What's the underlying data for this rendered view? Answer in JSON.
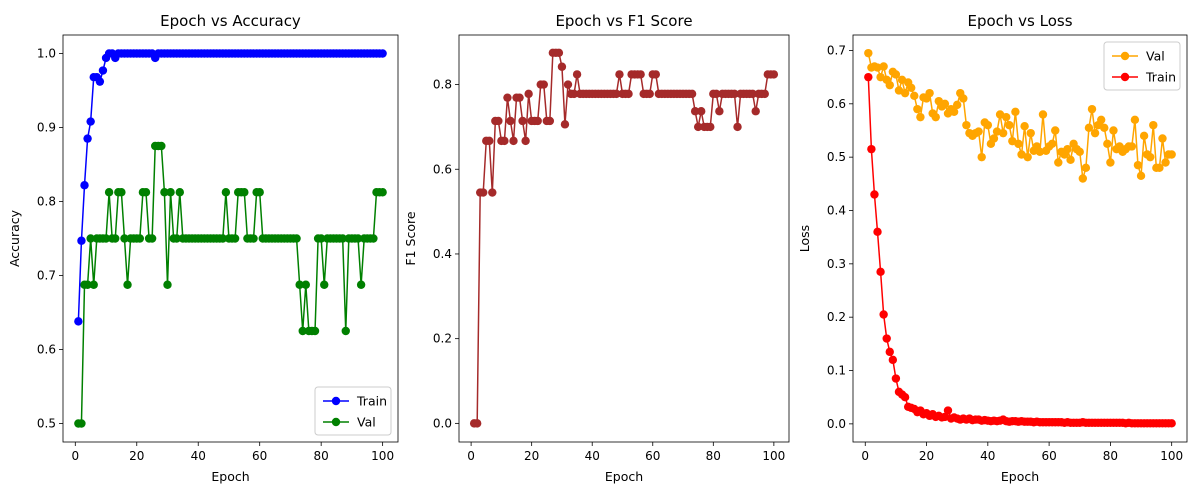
{
  "chart_data": [
    {
      "type": "line",
      "title": "Epoch vs Accuracy",
      "xlabel": "Epoch",
      "ylabel": "Accuracy",
      "xlim": [
        -4,
        105
      ],
      "ylim": [
        0.475,
        1.025
      ],
      "xticks": [
        0,
        20,
        40,
        60,
        80,
        100
      ],
      "yticks": [
        0.5,
        0.6,
        0.7,
        0.8,
        0.9,
        1.0
      ],
      "ytick_decimals": 1,
      "legend": "lower-right",
      "series": [
        {
          "name": "Train",
          "color": "#0000ff",
          "x": [
            1,
            2,
            3,
            4,
            5,
            6,
            7,
            8,
            9,
            10,
            11,
            12,
            13,
            14,
            15,
            16,
            17,
            18,
            19,
            20,
            21,
            22,
            23,
            24,
            25,
            26,
            27,
            28,
            29,
            30,
            31,
            32,
            33,
            34,
            35,
            36,
            37,
            38,
            39,
            40,
            41,
            42,
            43,
            44,
            45,
            46,
            47,
            48,
            49,
            50,
            51,
            52,
            53,
            54,
            55,
            56,
            57,
            58,
            59,
            60,
            61,
            62,
            63,
            64,
            65,
            66,
            67,
            68,
            69,
            70,
            71,
            72,
            73,
            74,
            75,
            76,
            77,
            78,
            79,
            80,
            81,
            82,
            83,
            84,
            85,
            86,
            87,
            88,
            89,
            90,
            91,
            92,
            93,
            94,
            95,
            96,
            97,
            98,
            99,
            100
          ],
          "y": [
            0.638,
            0.747,
            0.822,
            0.885,
            0.908,
            0.968,
            0.968,
            0.962,
            0.977,
            0.994,
            1.0,
            1.0,
            0.994,
            1.0,
            1.0,
            1.0,
            1.0,
            1.0,
            1.0,
            1.0,
            1.0,
            1.0,
            1.0,
            1.0,
            1.0,
            0.994,
            1.0,
            1.0,
            1.0,
            1.0,
            1.0,
            1.0,
            1.0,
            1.0,
            1.0,
            1.0,
            1.0,
            1.0,
            1.0,
            1.0,
            1.0,
            1.0,
            1.0,
            1.0,
            1.0,
            1.0,
            1.0,
            1.0,
            1.0,
            1.0,
            1.0,
            1.0,
            1.0,
            1.0,
            1.0,
            1.0,
            1.0,
            1.0,
            1.0,
            1.0,
            1.0,
            1.0,
            1.0,
            1.0,
            1.0,
            1.0,
            1.0,
            1.0,
            1.0,
            1.0,
            1.0,
            1.0,
            1.0,
            1.0,
            1.0,
            1.0,
            1.0,
            1.0,
            1.0,
            1.0,
            1.0,
            1.0,
            1.0,
            1.0,
            1.0,
            1.0,
            1.0,
            1.0,
            1.0,
            1.0,
            1.0,
            1.0,
            1.0,
            1.0,
            1.0,
            1.0,
            1.0,
            1.0,
            1.0,
            1.0
          ]
        },
        {
          "name": "Val",
          "color": "#008000",
          "x": [
            1,
            2,
            3,
            4,
            5,
            6,
            7,
            8,
            9,
            10,
            11,
            12,
            13,
            14,
            15,
            16,
            17,
            18,
            19,
            20,
            21,
            22,
            23,
            24,
            25,
            26,
            27,
            28,
            29,
            30,
            31,
            32,
            33,
            34,
            35,
            36,
            37,
            38,
            39,
            40,
            41,
            42,
            43,
            44,
            45,
            46,
            47,
            48,
            49,
            50,
            51,
            52,
            53,
            54,
            55,
            56,
            57,
            58,
            59,
            60,
            61,
            62,
            63,
            64,
            65,
            66,
            67,
            68,
            69,
            70,
            71,
            72,
            73,
            74,
            75,
            76,
            77,
            78,
            79,
            80,
            81,
            82,
            83,
            84,
            85,
            86,
            87,
            88,
            89,
            90,
            91,
            92,
            93,
            94,
            95,
            96,
            97,
            98,
            99,
            100
          ],
          "y": [
            0.5,
            0.5,
            0.6875,
            0.6875,
            0.75,
            0.6875,
            0.75,
            0.75,
            0.75,
            0.75,
            0.8125,
            0.75,
            0.75,
            0.8125,
            0.8125,
            0.75,
            0.6875,
            0.75,
            0.75,
            0.75,
            0.75,
            0.8125,
            0.8125,
            0.75,
            0.75,
            0.875,
            0.875,
            0.875,
            0.8125,
            0.6875,
            0.8125,
            0.75,
            0.75,
            0.8125,
            0.75,
            0.75,
            0.75,
            0.75,
            0.75,
            0.75,
            0.75,
            0.75,
            0.75,
            0.75,
            0.75,
            0.75,
            0.75,
            0.75,
            0.8125,
            0.75,
            0.75,
            0.75,
            0.8125,
            0.8125,
            0.8125,
            0.75,
            0.75,
            0.75,
            0.8125,
            0.8125,
            0.75,
            0.75,
            0.75,
            0.75,
            0.75,
            0.75,
            0.75,
            0.75,
            0.75,
            0.75,
            0.75,
            0.75,
            0.6875,
            0.625,
            0.6875,
            0.625,
            0.625,
            0.625,
            0.75,
            0.75,
            0.6875,
            0.75,
            0.75,
            0.75,
            0.75,
            0.75,
            0.75,
            0.625,
            0.75,
            0.75,
            0.75,
            0.75,
            0.6875,
            0.75,
            0.75,
            0.75,
            0.75,
            0.8125,
            0.8125,
            0.8125
          ]
        }
      ]
    },
    {
      "type": "line",
      "title": "Epoch vs F1 Score",
      "xlabel": "Epoch",
      "ylabel": "F1 Score",
      "xlim": [
        -4,
        105
      ],
      "ylim": [
        -0.044,
        0.917
      ],
      "xticks": [
        0,
        20,
        40,
        60,
        80,
        100
      ],
      "yticks": [
        0.0,
        0.2,
        0.4,
        0.6,
        0.8
      ],
      "ytick_decimals": 1,
      "legend": "",
      "series": [
        {
          "color": "#a52a2a",
          "x": [
            1,
            2,
            3,
            4,
            5,
            6,
            7,
            8,
            9,
            10,
            11,
            12,
            13,
            14,
            15,
            16,
            17,
            18,
            19,
            20,
            21,
            22,
            23,
            24,
            25,
            26,
            27,
            28,
            29,
            30,
            31,
            32,
            33,
            34,
            35,
            36,
            37,
            38,
            39,
            40,
            41,
            42,
            43,
            44,
            45,
            46,
            47,
            48,
            49,
            50,
            51,
            52,
            53,
            54,
            55,
            56,
            57,
            58,
            59,
            60,
            61,
            62,
            63,
            64,
            65,
            66,
            67,
            68,
            69,
            70,
            71,
            72,
            73,
            74,
            75,
            76,
            77,
            78,
            79,
            80,
            81,
            82,
            83,
            84,
            85,
            86,
            87,
            88,
            89,
            90,
            91,
            92,
            93,
            94,
            95,
            96,
            97,
            98,
            99,
            100
          ],
          "y": [
            0.0,
            0.0,
            0.545,
            0.545,
            0.667,
            0.667,
            0.545,
            0.714,
            0.714,
            0.667,
            0.667,
            0.769,
            0.714,
            0.667,
            0.769,
            0.769,
            0.714,
            0.667,
            0.778,
            0.714,
            0.714,
            0.714,
            0.8,
            0.8,
            0.714,
            0.714,
            0.875,
            0.875,
            0.875,
            0.842,
            0.706,
            0.8,
            0.778,
            0.778,
            0.824,
            0.778,
            0.778,
            0.778,
            0.778,
            0.778,
            0.778,
            0.778,
            0.778,
            0.778,
            0.778,
            0.778,
            0.778,
            0.778,
            0.824,
            0.778,
            0.778,
            0.778,
            0.824,
            0.824,
            0.824,
            0.824,
            0.778,
            0.778,
            0.778,
            0.824,
            0.824,
            0.778,
            0.778,
            0.778,
            0.778,
            0.778,
            0.778,
            0.778,
            0.778,
            0.778,
            0.778,
            0.778,
            0.778,
            0.737,
            0.7,
            0.737,
            0.7,
            0.7,
            0.7,
            0.778,
            0.778,
            0.737,
            0.778,
            0.778,
            0.778,
            0.778,
            0.778,
            0.7,
            0.778,
            0.778,
            0.778,
            0.778,
            0.778,
            0.737,
            0.778,
            0.778,
            0.778,
            0.824,
            0.824,
            0.824
          ]
        }
      ]
    },
    {
      "type": "line",
      "title": "Epoch vs Loss",
      "xlabel": "Epoch",
      "ylabel": "Loss",
      "xlim": [
        -4,
        105
      ],
      "ylim": [
        -0.034,
        0.729
      ],
      "xticks": [
        0,
        20,
        40,
        60,
        80,
        100
      ],
      "yticks": [
        0.0,
        0.1,
        0.2,
        0.3,
        0.4,
        0.5,
        0.6,
        0.7
      ],
      "ytick_decimals": 1,
      "legend": "upper-right",
      "series": [
        {
          "name": "Val",
          "color": "#ffa500",
          "x": [
            1,
            2,
            3,
            4,
            5,
            6,
            7,
            8,
            9,
            10,
            11,
            12,
            13,
            14,
            15,
            16,
            17,
            18,
            19,
            20,
            21,
            22,
            23,
            24,
            25,
            26,
            27,
            28,
            29,
            30,
            31,
            32,
            33,
            34,
            35,
            36,
            37,
            38,
            39,
            40,
            41,
            42,
            43,
            44,
            45,
            46,
            47,
            48,
            49,
            50,
            51,
            52,
            53,
            54,
            55,
            56,
            57,
            58,
            59,
            60,
            61,
            62,
            63,
            64,
            65,
            66,
            67,
            68,
            69,
            70,
            71,
            72,
            73,
            74,
            75,
            76,
            77,
            78,
            79,
            80,
            81,
            82,
            83,
            84,
            85,
            86,
            87,
            88,
            89,
            90,
            91,
            92,
            93,
            94,
            95,
            96,
            97,
            98,
            99,
            100
          ],
          "y": [
            0.695,
            0.668,
            0.67,
            0.668,
            0.65,
            0.67,
            0.645,
            0.635,
            0.66,
            0.655,
            0.625,
            0.645,
            0.62,
            0.64,
            0.63,
            0.615,
            0.59,
            0.575,
            0.612,
            0.61,
            0.62,
            0.582,
            0.575,
            0.605,
            0.595,
            0.6,
            0.582,
            0.59,
            0.585,
            0.598,
            0.62,
            0.61,
            0.56,
            0.545,
            0.54,
            0.545,
            0.548,
            0.5,
            0.565,
            0.56,
            0.525,
            0.535,
            0.548,
            0.58,
            0.545,
            0.575,
            0.56,
            0.53,
            0.585,
            0.525,
            0.505,
            0.558,
            0.5,
            0.545,
            0.512,
            0.52,
            0.51,
            0.58,
            0.512,
            0.52,
            0.525,
            0.55,
            0.49,
            0.51,
            0.505,
            0.515,
            0.495,
            0.525,
            0.515,
            0.51,
            0.46,
            0.48,
            0.555,
            0.59,
            0.545,
            0.56,
            0.57,
            0.555,
            0.525,
            0.49,
            0.55,
            0.515,
            0.52,
            0.51,
            0.515,
            0.52,
            0.52,
            0.57,
            0.485,
            0.465,
            0.54,
            0.505,
            0.5,
            0.56,
            0.48,
            0.48,
            0.535,
            0.49,
            0.505,
            0.505
          ]
        },
        {
          "name": "Train",
          "color": "#ff0000",
          "x": [
            1,
            2,
            3,
            4,
            5,
            6,
            7,
            8,
            9,
            10,
            11,
            12,
            13,
            14,
            15,
            16,
            17,
            18,
            19,
            20,
            21,
            22,
            23,
            24,
            25,
            26,
            27,
            28,
            29,
            30,
            31,
            32,
            33,
            34,
            35,
            36,
            37,
            38,
            39,
            40,
            41,
            42,
            43,
            44,
            45,
            46,
            47,
            48,
            49,
            50,
            51,
            52,
            53,
            54,
            55,
            56,
            57,
            58,
            59,
            60,
            61,
            62,
            63,
            64,
            65,
            66,
            67,
            68,
            69,
            70,
            71,
            72,
            73,
            74,
            75,
            76,
            77,
            78,
            79,
            80,
            81,
            82,
            83,
            84,
            85,
            86,
            87,
            88,
            89,
            90,
            91,
            92,
            93,
            94,
            95,
            96,
            97,
            98,
            99,
            100
          ],
          "y": [
            0.65,
            0.515,
            0.43,
            0.36,
            0.285,
            0.205,
            0.16,
            0.135,
            0.12,
            0.085,
            0.06,
            0.055,
            0.05,
            0.032,
            0.03,
            0.028,
            0.022,
            0.025,
            0.018,
            0.02,
            0.015,
            0.018,
            0.013,
            0.015,
            0.012,
            0.013,
            0.025,
            0.01,
            0.012,
            0.01,
            0.008,
            0.01,
            0.008,
            0.01,
            0.007,
            0.008,
            0.008,
            0.006,
            0.007,
            0.006,
            0.005,
            0.006,
            0.005,
            0.006,
            0.008,
            0.005,
            0.004,
            0.005,
            0.005,
            0.004,
            0.005,
            0.004,
            0.004,
            0.004,
            0.003,
            0.004,
            0.003,
            0.003,
            0.003,
            0.003,
            0.003,
            0.003,
            0.003,
            0.003,
            0.002,
            0.003,
            0.002,
            0.002,
            0.002,
            0.002,
            0.003,
            0.002,
            0.002,
            0.002,
            0.002,
            0.002,
            0.002,
            0.002,
            0.002,
            0.002,
            0.002,
            0.002,
            0.002,
            0.002,
            0.001,
            0.002,
            0.001,
            0.001,
            0.001,
            0.001,
            0.001,
            0.001,
            0.001,
            0.001,
            0.001,
            0.001,
            0.001,
            0.001,
            0.001,
            0.001
          ]
        }
      ]
    }
  ]
}
